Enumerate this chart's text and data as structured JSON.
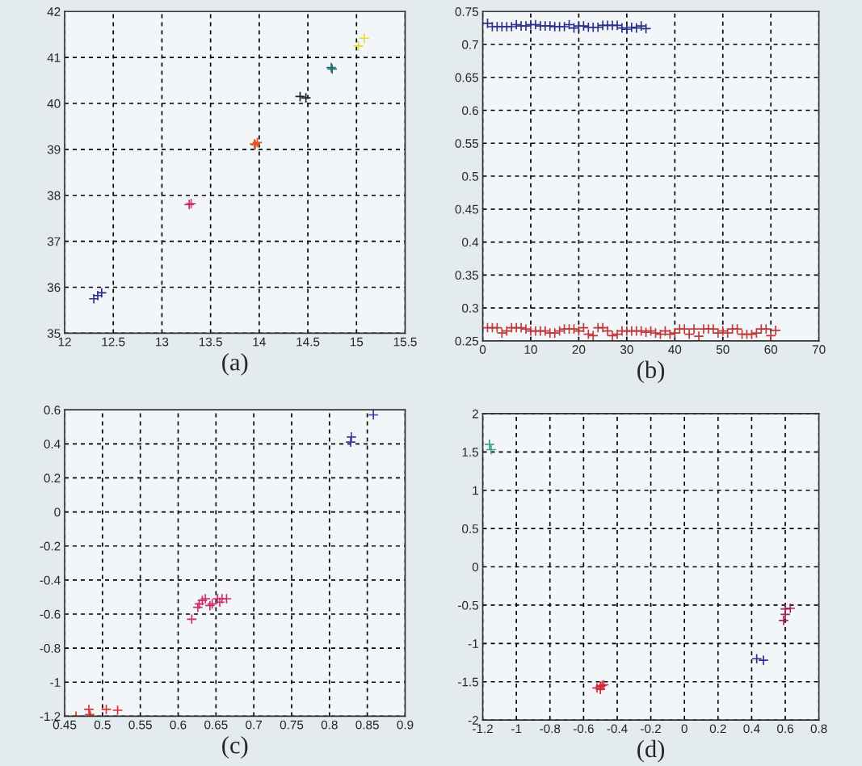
{
  "chart_data": [
    {
      "type": "scatter",
      "xlabel": "(a)",
      "marker": "cross",
      "grid": true,
      "xlim": [
        12,
        15.5
      ],
      "ylim": [
        35,
        42
      ],
      "xticks": [
        12,
        12.5,
        13,
        13.5,
        14,
        14.5,
        15,
        15.5
      ],
      "yticks": [
        35,
        36,
        37,
        38,
        39,
        40,
        41,
        42
      ],
      "series": [
        {
          "color": "#2a2f8c",
          "x": [
            12.3,
            12.34,
            12.38
          ],
          "values": [
            35.75,
            35.82,
            35.88
          ]
        },
        {
          "color": "#c8306e",
          "x": [
            13.28,
            13.3
          ],
          "values": [
            37.8,
            37.82
          ]
        },
        {
          "color": "#e0502a",
          "x": [
            13.95,
            13.96,
            13.98
          ],
          "values": [
            39.12,
            39.1,
            39.15
          ]
        },
        {
          "color": "#222222",
          "x": [
            14.42,
            14.48
          ],
          "values": [
            40.15,
            40.12
          ]
        },
        {
          "color": "#1f6f6a",
          "x": [
            14.74,
            14.75
          ],
          "values": [
            40.78,
            40.75
          ]
        },
        {
          "color": "#e8dc30",
          "x": [
            15.02,
            15.08
          ],
          "values": [
            41.25,
            41.42
          ]
        }
      ]
    },
    {
      "type": "scatter",
      "xlabel": "(b)",
      "marker": "cross",
      "grid": true,
      "xlim": [
        0,
        70
      ],
      "ylim": [
        0.25,
        0.75
      ],
      "xticks": [
        0,
        10,
        20,
        30,
        40,
        50,
        60,
        70
      ],
      "yticks": [
        0.25,
        0.3,
        0.35,
        0.4,
        0.45,
        0.5,
        0.55,
        0.6,
        0.65,
        0.7,
        0.75
      ],
      "series": [
        {
          "color": "#2a2f8c",
          "x": [
            1,
            2,
            3,
            4,
            5,
            6,
            7,
            8,
            9,
            10,
            11,
            12,
            13,
            14,
            15,
            16,
            17,
            18,
            19,
            20,
            21,
            22,
            23,
            24,
            25,
            26,
            27,
            28,
            29,
            30,
            31,
            32,
            33,
            34
          ],
          "values": [
            0.732,
            0.727,
            0.727,
            0.727,
            0.727,
            0.727,
            0.73,
            0.728,
            0.728,
            0.73,
            0.73,
            0.728,
            0.728,
            0.728,
            0.727,
            0.727,
            0.727,
            0.73,
            0.725,
            0.728,
            0.728,
            0.726,
            0.726,
            0.726,
            0.729,
            0.729,
            0.729,
            0.729,
            0.725,
            0.723,
            0.726,
            0.725,
            0.728,
            0.724
          ]
        },
        {
          "color": "#c03838",
          "x": [
            1,
            2,
            3,
            4,
            5,
            6,
            7,
            8,
            9,
            10,
            11,
            12,
            13,
            14,
            15,
            16,
            17,
            18,
            19,
            20,
            21,
            22,
            23,
            24,
            25,
            26,
            27,
            28,
            29,
            30,
            31,
            32,
            33,
            34,
            35,
            36,
            37,
            38,
            39,
            40,
            41,
            42,
            43,
            44,
            45,
            46,
            47,
            48,
            49,
            50,
            51,
            52,
            53,
            54,
            55,
            56,
            57,
            58,
            59,
            60,
            61
          ],
          "values": [
            0.27,
            0.27,
            0.27,
            0.262,
            0.265,
            0.27,
            0.27,
            0.27,
            0.268,
            0.265,
            0.265,
            0.265,
            0.265,
            0.262,
            0.262,
            0.265,
            0.268,
            0.268,
            0.268,
            0.265,
            0.27,
            0.26,
            0.258,
            0.27,
            0.27,
            0.265,
            0.258,
            0.26,
            0.265,
            0.265,
            0.265,
            0.265,
            0.265,
            0.263,
            0.265,
            0.262,
            0.26,
            0.265,
            0.26,
            0.262,
            0.268,
            0.268,
            0.26,
            0.268,
            0.257,
            0.268,
            0.268,
            0.268,
            0.262,
            0.265,
            0.262,
            0.268,
            0.268,
            0.26,
            0.26,
            0.26,
            0.262,
            0.268,
            0.268,
            0.258,
            0.266
          ]
        }
      ]
    },
    {
      "type": "scatter",
      "xlabel": "(c)",
      "marker": "cross",
      "grid": true,
      "xlim": [
        0.45,
        0.9
      ],
      "ylim": [
        -1.2,
        0.6
      ],
      "xticks": [
        0.45,
        0.5,
        0.55,
        0.6,
        0.65,
        0.7,
        0.75,
        0.8,
        0.85,
        0.9
      ],
      "yticks": [
        -1.2,
        -1,
        -0.8,
        -0.6,
        -0.4,
        -0.2,
        0,
        0.2,
        0.4,
        0.6
      ],
      "series": [
        {
          "color": "#e03030",
          "x": [
            0.465,
            0.482,
            0.483,
            0.484,
            0.505,
            0.52
          ],
          "values": [
            -1.2,
            -1.16,
            -1.19,
            -1.2,
            -1.16,
            -1.165
          ]
        },
        {
          "color": "#c8306e",
          "x": [
            0.618,
            0.626,
            0.628,
            0.632,
            0.636,
            0.642,
            0.645,
            0.652,
            0.655,
            0.658,
            0.664
          ],
          "values": [
            -0.63,
            -0.56,
            -0.54,
            -0.52,
            -0.51,
            -0.55,
            -0.54,
            -0.51,
            -0.53,
            -0.51,
            -0.51
          ]
        },
        {
          "color": "#3a3a9a",
          "x": [
            0.828,
            0.829,
            0.858
          ],
          "values": [
            0.41,
            0.44,
            0.57
          ]
        }
      ]
    },
    {
      "type": "scatter",
      "xlabel": "(d)",
      "marker": "cross",
      "grid": true,
      "xlim": [
        -1.2,
        0.8
      ],
      "ylim": [
        -2,
        2
      ],
      "xticks": [
        -1.2,
        -1,
        -0.8,
        -0.6,
        -0.4,
        -0.2,
        0,
        0.2,
        0.4,
        0.6,
        0.8
      ],
      "yticks": [
        -2,
        -1.5,
        -1,
        -0.5,
        0,
        0.5,
        1,
        1.5,
        2
      ],
      "series": [
        {
          "color": "#3aa08a",
          "x": [
            -1.16,
            -1.15
          ],
          "values": [
            1.6,
            1.53
          ]
        },
        {
          "color": "#d02a3a",
          "x": [
            -0.52,
            -0.5,
            -0.49,
            -0.5,
            -0.48
          ],
          "values": [
            -1.58,
            -1.56,
            -1.55,
            -1.6,
            -1.54
          ]
        },
        {
          "color": "#2a2f8c",
          "x": [
            0.43,
            0.47
          ],
          "values": [
            -1.2,
            -1.22
          ]
        },
        {
          "color": "#a02850",
          "x": [
            0.59,
            0.6,
            0.6,
            0.63
          ],
          "values": [
            -0.7,
            -0.62,
            -0.55,
            -0.54
          ]
        }
      ]
    }
  ]
}
